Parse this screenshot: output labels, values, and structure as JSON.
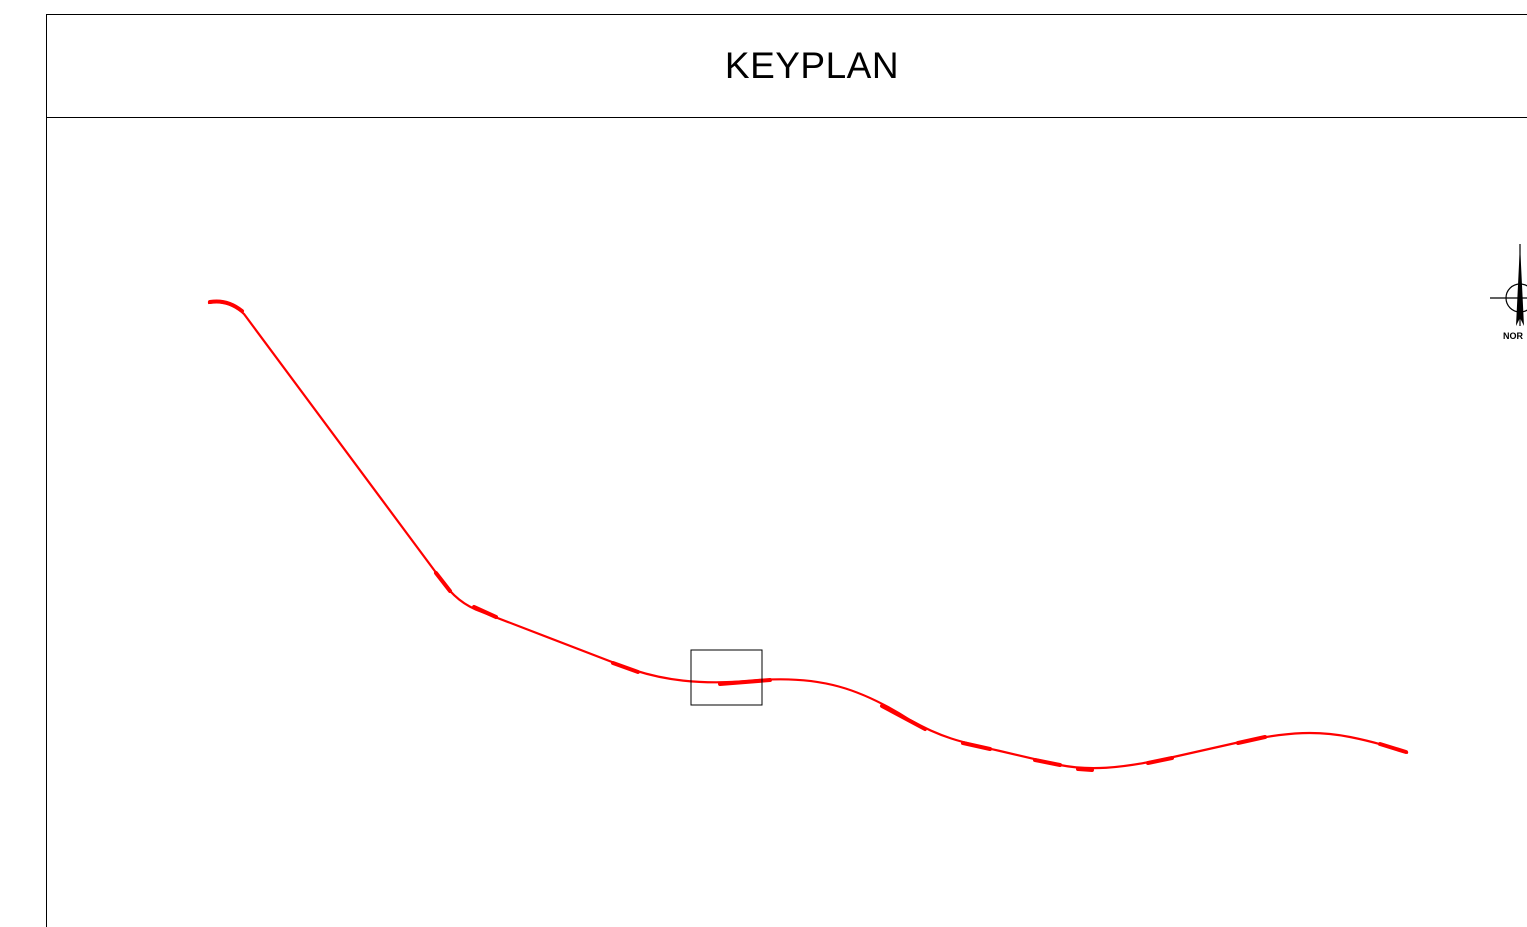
{
  "title": "KEYPLAN",
  "north_arrow": {
    "label": "NOR",
    "icon": "north-arrow-icon"
  },
  "colors": {
    "alignment": "#ff0000",
    "linework": "#000000",
    "background": "#ffffff"
  }
}
